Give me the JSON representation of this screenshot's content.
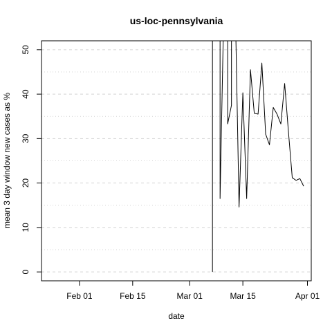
{
  "chart_data": {
    "type": "line",
    "title": "us-loc-pennsylvania",
    "xlabel": "date",
    "ylabel": "mean  3  day window new cases as %",
    "x_ticks": [
      {
        "label": "Feb 01",
        "date": "2020-02-01"
      },
      {
        "label": "Feb 15",
        "date": "2020-02-15"
      },
      {
        "label": "Mar 01",
        "date": "2020-03-01"
      },
      {
        "label": "Mar 15",
        "date": "2020-03-15"
      },
      {
        "label": "Apr 01",
        "date": "2020-04-01"
      }
    ],
    "y_ticks": [
      0,
      10,
      20,
      30,
      40,
      50
    ],
    "xlim": [
      "2020-01-22",
      "2020-04-02"
    ],
    "ylim": [
      -2,
      52
    ],
    "grid": {
      "horizontal": true,
      "minor_horizontal": true,
      "style": "dashed"
    },
    "line_color": "#000000",
    "grid_color": "#d3d3d3",
    "series": [
      {
        "points": [
          {
            "date": "2020-03-07",
            "y": 0
          },
          {
            "date": "2020-03-07",
            "y": 60
          },
          {
            "date": "2020-03-09",
            "y": 60
          },
          {
            "date": "2020-03-09",
            "y": 16.5
          },
          {
            "date": "2020-03-10",
            "y": 60
          },
          {
            "date": "2020-03-11",
            "y": 60
          },
          {
            "date": "2020-03-11",
            "y": 33.3
          },
          {
            "date": "2020-03-12",
            "y": 37.5
          },
          {
            "date": "2020-03-12",
            "y": 60
          },
          {
            "date": "2020-03-13",
            "y": 60
          },
          {
            "date": "2020-03-14",
            "y": 14.6
          },
          {
            "date": "2020-03-15",
            "y": 40.3
          },
          {
            "date": "2020-03-16",
            "y": 16.5
          },
          {
            "date": "2020-03-17",
            "y": 45.5
          },
          {
            "date": "2020-03-18",
            "y": 35.7
          },
          {
            "date": "2020-03-19",
            "y": 35.5
          },
          {
            "date": "2020-03-20",
            "y": 47.0
          },
          {
            "date": "2020-03-21",
            "y": 31.0
          },
          {
            "date": "2020-03-22",
            "y": 28.6
          },
          {
            "date": "2020-03-23",
            "y": 37.0
          },
          {
            "date": "2020-03-24",
            "y": 35.5
          },
          {
            "date": "2020-03-25",
            "y": 33.3
          },
          {
            "date": "2020-03-26",
            "y": 42.4
          },
          {
            "date": "2020-03-27",
            "y": 31.5
          },
          {
            "date": "2020-03-28",
            "y": 21.2
          },
          {
            "date": "2020-03-29",
            "y": 20.6
          },
          {
            "date": "2020-03-30",
            "y": 21.0
          },
          {
            "date": "2020-03-31",
            "y": 19.3
          }
        ]
      }
    ]
  }
}
